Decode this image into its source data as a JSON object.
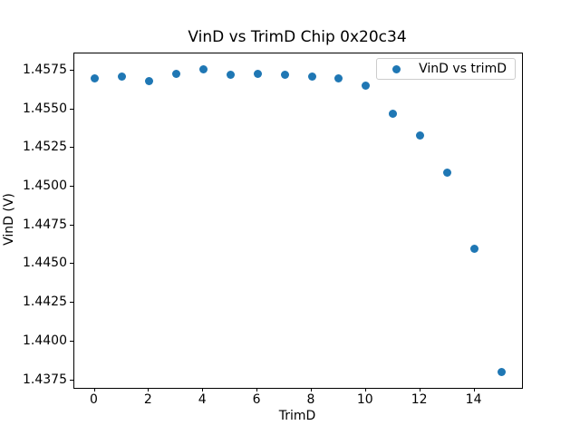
{
  "chart_data": {
    "type": "scatter",
    "title": "VinD vs TrimD Chip 0x20c34",
    "xlabel": "TrimD",
    "ylabel": "VinD (V)",
    "legend": {
      "label": "VinD vs trimD",
      "position": "upper right"
    },
    "marker_color": "#1f77b4",
    "x": [
      0,
      1,
      2,
      3,
      4,
      5,
      6,
      7,
      8,
      9,
      10,
      11,
      12,
      13,
      14,
      15
    ],
    "y": [
      1.457,
      1.4571,
      1.4568,
      1.4573,
      1.4576,
      1.4572,
      1.4573,
      1.4572,
      1.4571,
      1.457,
      1.4565,
      1.4547,
      1.4533,
      1.4509,
      1.446,
      1.438
    ],
    "xlim": [
      -0.75,
      15.75
    ],
    "ylim": [
      1.437,
      1.4586
    ],
    "xticks": [
      0,
      2,
      4,
      6,
      8,
      10,
      12,
      14
    ],
    "yticks": [
      1.4375,
      1.44,
      1.4425,
      1.445,
      1.4475,
      1.45,
      1.4525,
      1.455,
      1.4575
    ],
    "ytick_decimals": 4,
    "grid": false,
    "axes_background": "#ffffff",
    "spine_color": "#000000",
    "text_color": "#000000"
  }
}
